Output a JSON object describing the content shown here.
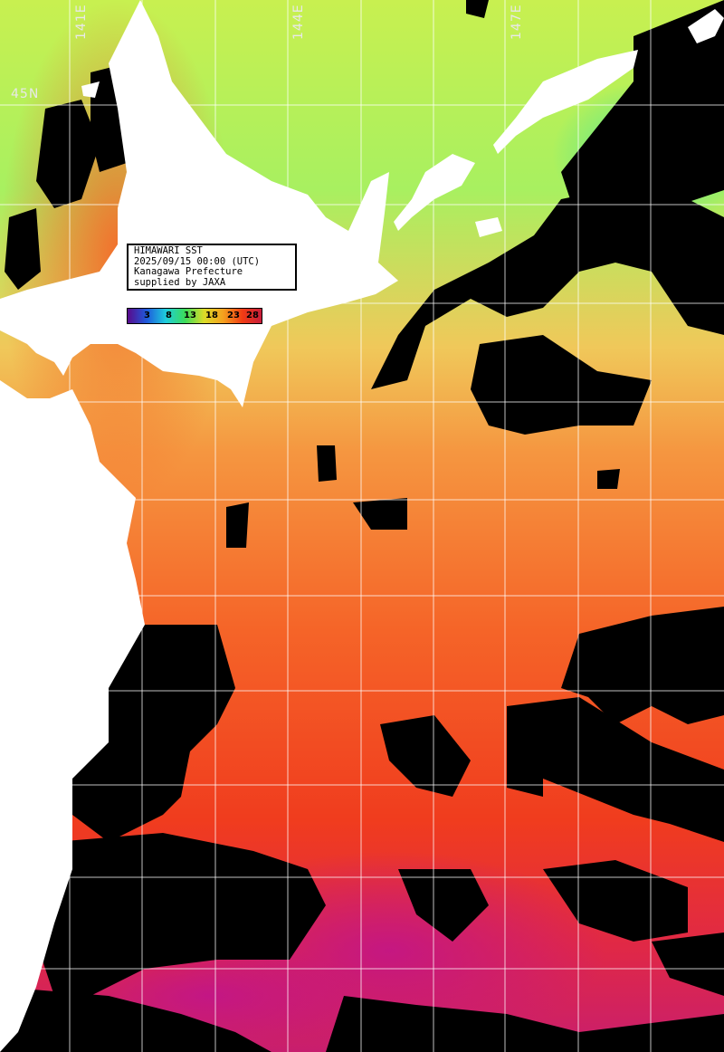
{
  "info": {
    "line1": "HIMAWARI SST",
    "line2": "2025/09/15 00:00 (UTC)",
    "line3": "Kanagawa Prefecture",
    "line4": "supplied by JAXA"
  },
  "legend": {
    "ticks": [
      "3",
      "8",
      "13",
      "18",
      "23",
      "28"
    ],
    "colors": [
      "#5a0a8c",
      "#1e5adc",
      "#1ecddc",
      "#3cdc5a",
      "#dcdc28",
      "#f5a01e",
      "#f03c14",
      "#c81e3c"
    ]
  },
  "axes": {
    "lon_labels": [
      "141E",
      "144E",
      "147E"
    ],
    "lat_labels": [
      "45N"
    ]
  },
  "colors": {
    "land": "#ffffff",
    "cloud": "#000000",
    "grid": "#ffffff",
    "sst_cold": "#3ce68c",
    "sst_cool": "#b4f050",
    "sst_mild": "#f5c850",
    "sst_warm": "#f57832",
    "sst_hot": "#f03214",
    "sst_hottest": "#c81e5a"
  }
}
